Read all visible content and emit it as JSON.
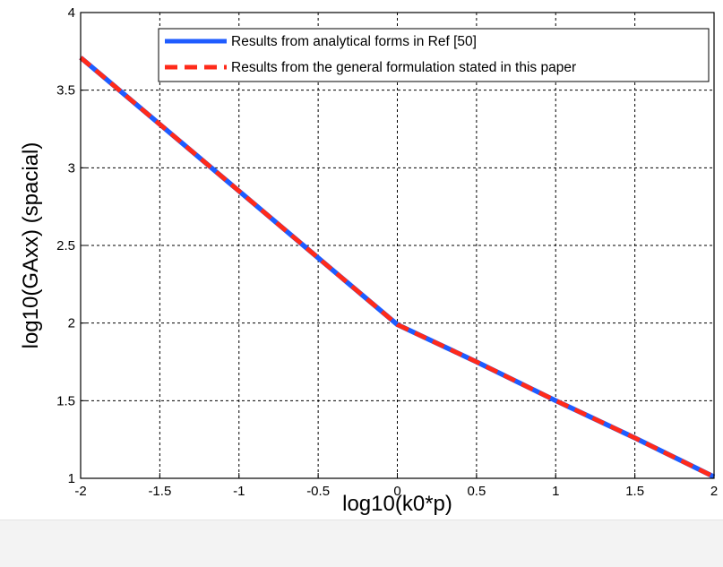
{
  "chart_data": {
    "type": "line",
    "xlabel": "log10(k0*p)",
    "ylabel": "log10(GAxx) (spacial)",
    "xlim": [
      -2,
      2
    ],
    "ylim": [
      1,
      4
    ],
    "x_ticks": [
      "-2",
      "-1.5",
      "-1",
      "-0.5",
      "0",
      "0.5",
      "1",
      "1.5",
      "2"
    ],
    "y_ticks": [
      "1",
      "1.5",
      "2",
      "2.5",
      "3",
      "3.5",
      "4"
    ],
    "grid": true,
    "legend_position": "top-right",
    "series": [
      {
        "name": "Results from analytical forms in Ref [50]",
        "color": "#1f5cff",
        "style": "solid",
        "x": [
          -2,
          -1.5,
          -1,
          -0.5,
          0,
          0.5,
          1,
          1.5,
          2
        ],
        "y": [
          3.71,
          3.28,
          2.85,
          2.42,
          1.99,
          1.75,
          1.5,
          1.26,
          1.01
        ]
      },
      {
        "name": "Results from the general formulation stated in this paper",
        "color": "#ff2a1a",
        "style": "dashed",
        "x": [
          -2,
          -1.5,
          -1,
          -0.5,
          0,
          0.5,
          1,
          1.5,
          2
        ],
        "y": [
          3.71,
          3.28,
          2.85,
          2.42,
          1.99,
          1.75,
          1.5,
          1.26,
          1.01
        ]
      }
    ]
  }
}
